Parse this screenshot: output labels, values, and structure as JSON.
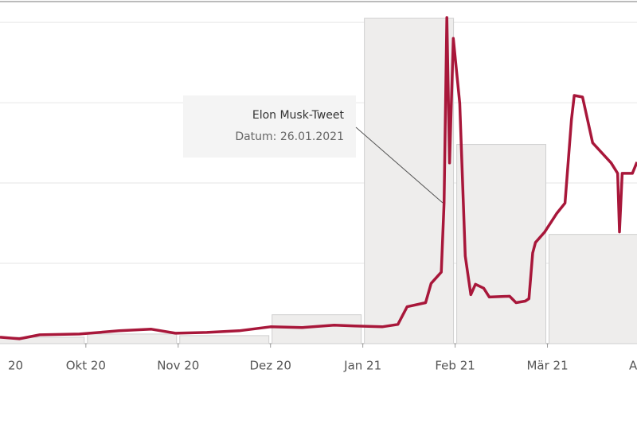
{
  "chart_data": {
    "type": "line",
    "annotation": {
      "title": "Elon Musk-Tweet",
      "subtitle": "Datum: 26.01.2021"
    },
    "xlim": [
      0.07,
      6.97
    ],
    "xticks": [
      {
        "value": 0,
        "label": "20"
      },
      {
        "value": 1,
        "label": "Okt 20"
      },
      {
        "value": 2,
        "label": "Nov 20"
      },
      {
        "value": 3,
        "label": "Dez 20"
      },
      {
        "value": 4,
        "label": "Jan 21"
      },
      {
        "value": 5,
        "label": "Feb 21"
      },
      {
        "value": 6,
        "label": "Mär 21"
      },
      {
        "value": 7,
        "label": "Ap"
      }
    ],
    "ylim": [
      0,
      4.1
    ],
    "yticks": [
      0,
      1,
      2,
      3,
      4
    ],
    "grid": true,
    "bars": {
      "color": "#eeedec",
      "x": [
        0,
        1,
        2,
        3,
        4,
        5,
        6
      ],
      "values": [
        0.08,
        0.12,
        0.1,
        0.36,
        4.05,
        2.48,
        1.36
      ]
    },
    "series": [
      {
        "color": "#a8173a",
        "x": [
          0.07,
          0.28,
          0.5,
          0.93,
          1.36,
          1.71,
          1.97,
          2.31,
          2.66,
          3.0,
          3.34,
          3.69,
          3.91,
          4.21,
          4.38,
          4.48,
          4.68,
          4.74,
          4.85,
          4.88,
          4.91,
          4.94,
          4.98,
          5.05,
          5.11,
          5.17,
          5.22,
          5.31,
          5.37,
          5.59,
          5.66,
          5.76,
          5.8,
          5.84,
          5.87,
          5.97,
          6.1,
          6.19,
          6.26,
          6.29,
          6.38,
          6.49,
          6.69,
          6.76,
          6.78,
          6.81,
          6.92,
          6.97
        ],
        "values": [
          0.08,
          0.06,
          0.11,
          0.12,
          0.16,
          0.18,
          0.13,
          0.14,
          0.16,
          0.21,
          0.2,
          0.23,
          0.22,
          0.21,
          0.24,
          0.46,
          0.51,
          0.75,
          0.89,
          1.75,
          4.06,
          2.25,
          3.8,
          2.99,
          1.09,
          0.61,
          0.74,
          0.69,
          0.58,
          0.59,
          0.51,
          0.53,
          0.56,
          1.13,
          1.26,
          1.39,
          1.62,
          1.75,
          2.79,
          3.09,
          3.07,
          2.5,
          2.25,
          2.12,
          1.39,
          2.12,
          2.12,
          2.26
        ]
      }
    ]
  }
}
